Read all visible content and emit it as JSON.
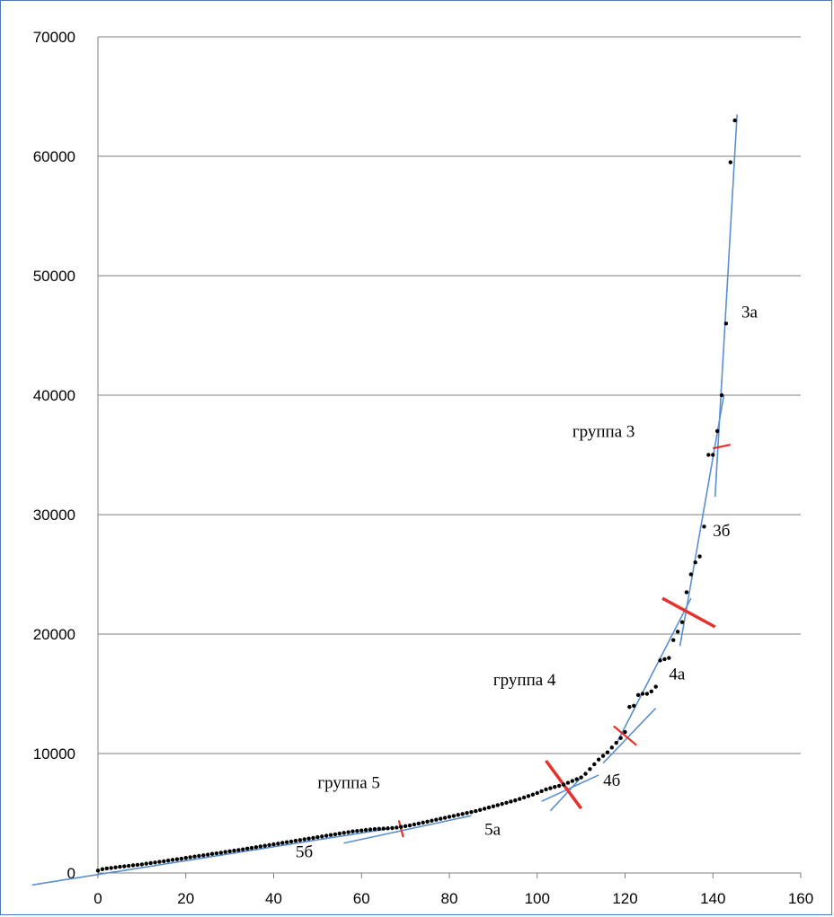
{
  "chart_data": {
    "type": "scatter",
    "title": "",
    "xlabel": "",
    "ylabel": "",
    "xlim": [
      0,
      160
    ],
    "ylim": [
      0,
      70000
    ],
    "x_ticks": [
      "0",
      "20",
      "40",
      "60",
      "80",
      "100",
      "120",
      "140",
      "160"
    ],
    "y_ticks": [
      "0",
      "10000",
      "20000",
      "30000",
      "40000",
      "50000",
      "60000",
      "70000"
    ],
    "grid": "horizontal",
    "points": [
      [
        0,
        200
      ],
      [
        1,
        320
      ],
      [
        2,
        380
      ],
      [
        3,
        420
      ],
      [
        4,
        470
      ],
      [
        5,
        520
      ],
      [
        6,
        560
      ],
      [
        7,
        600
      ],
      [
        8,
        640
      ],
      [
        9,
        680
      ],
      [
        10,
        720
      ],
      [
        11,
        780
      ],
      [
        12,
        830
      ],
      [
        13,
        880
      ],
      [
        14,
        930
      ],
      [
        15,
        980
      ],
      [
        16,
        1040
      ],
      [
        17,
        1100
      ],
      [
        18,
        1150
      ],
      [
        19,
        1200
      ],
      [
        20,
        1260
      ],
      [
        21,
        1320
      ],
      [
        22,
        1380
      ],
      [
        23,
        1430
      ],
      [
        24,
        1480
      ],
      [
        25,
        1540
      ],
      [
        26,
        1600
      ],
      [
        27,
        1650
      ],
      [
        28,
        1700
      ],
      [
        29,
        1760
      ],
      [
        30,
        1820
      ],
      [
        31,
        1870
      ],
      [
        32,
        1920
      ],
      [
        33,
        1980
      ],
      [
        34,
        2040
      ],
      [
        35,
        2100
      ],
      [
        36,
        2160
      ],
      [
        37,
        2220
      ],
      [
        38,
        2280
      ],
      [
        39,
        2340
      ],
      [
        40,
        2400
      ],
      [
        41,
        2460
      ],
      [
        42,
        2520
      ],
      [
        43,
        2580
      ],
      [
        44,
        2640
      ],
      [
        45,
        2700
      ],
      [
        46,
        2760
      ],
      [
        47,
        2820
      ],
      [
        48,
        2880
      ],
      [
        49,
        2940
      ],
      [
        50,
        3000
      ],
      [
        51,
        3060
      ],
      [
        52,
        3120
      ],
      [
        53,
        3180
      ],
      [
        54,
        3240
      ],
      [
        55,
        3300
      ],
      [
        56,
        3360
      ],
      [
        57,
        3420
      ],
      [
        58,
        3480
      ],
      [
        59,
        3520
      ],
      [
        60,
        3560
      ],
      [
        61,
        3600
      ],
      [
        62,
        3640
      ],
      [
        63,
        3680
      ],
      [
        64,
        3700
      ],
      [
        65,
        3720
      ],
      [
        66,
        3740
      ],
      [
        67,
        3760
      ],
      [
        68,
        3800
      ],
      [
        69,
        3860
      ],
      [
        70,
        3920
      ],
      [
        71,
        3980
      ],
      [
        72,
        4060
      ],
      [
        73,
        4140
      ],
      [
        74,
        4220
      ],
      [
        75,
        4300
      ],
      [
        76,
        4380
      ],
      [
        77,
        4460
      ],
      [
        78,
        4540
      ],
      [
        79,
        4620
      ],
      [
        80,
        4700
      ],
      [
        81,
        4780
      ],
      [
        82,
        4860
      ],
      [
        83,
        4940
      ],
      [
        84,
        5020
      ],
      [
        85,
        5100
      ],
      [
        86,
        5180
      ],
      [
        87,
        5280
      ],
      [
        88,
        5380
      ],
      [
        89,
        5480
      ],
      [
        90,
        5580
      ],
      [
        91,
        5680
      ],
      [
        92,
        5780
      ],
      [
        93,
        5880
      ],
      [
        94,
        5980
      ],
      [
        95,
        6080
      ],
      [
        96,
        6200
      ],
      [
        97,
        6320
      ],
      [
        98,
        6440
      ],
      [
        99,
        6560
      ],
      [
        100,
        6700
      ],
      [
        101,
        6850
      ],
      [
        102,
        7000
      ],
      [
        103,
        7100
      ],
      [
        104,
        7200
      ],
      [
        105,
        7300
      ],
      [
        106,
        7400
      ],
      [
        107,
        7550
      ],
      [
        108,
        7700
      ],
      [
        109,
        7850
      ],
      [
        110,
        8000
      ],
      [
        111,
        8300
      ],
      [
        112,
        8700
      ],
      [
        113,
        9100
      ],
      [
        114,
        9500
      ],
      [
        115,
        9800
      ],
      [
        116,
        10100
      ],
      [
        117,
        10500
      ],
      [
        118,
        10900
      ],
      [
        119,
        11300
      ],
      [
        120,
        11800
      ],
      [
        121,
        13900
      ],
      [
        122,
        14000
      ],
      [
        123,
        14900
      ],
      [
        124,
        15000
      ],
      [
        125,
        15000
      ],
      [
        126,
        15200
      ],
      [
        127,
        15600
      ],
      [
        128,
        17800
      ],
      [
        129,
        17900
      ],
      [
        130,
        18000
      ],
      [
        131,
        19500
      ],
      [
        132,
        20200
      ],
      [
        133,
        21000
      ],
      [
        134,
        23500
      ],
      [
        135,
        25000
      ],
      [
        136,
        26000
      ],
      [
        137,
        26500
      ],
      [
        138,
        29000
      ],
      [
        139,
        35000
      ],
      [
        140,
        35000
      ],
      [
        141,
        37000
      ],
      [
        142,
        40000
      ],
      [
        143,
        46000
      ],
      [
        144,
        59500
      ],
      [
        145,
        63000
      ]
    ],
    "fit_lines": [
      {
        "label": "3а",
        "from": [
          140.5,
          31500
        ],
        "to": [
          145.5,
          63500
        ]
      },
      {
        "label": "3б",
        "from": [
          132.5,
          19000
        ],
        "to": [
          142.5,
          40000
        ]
      },
      {
        "label": "4а",
        "from": [
          118,
          10800
        ],
        "to": [
          135,
          23000
        ]
      },
      {
        "label": "4б",
        "from": [
          101,
          6000
        ],
        "to": [
          114,
          8200
        ]
      },
      {
        "label": "5а",
        "from": [
          56,
          2500
        ],
        "to": [
          85,
          4800
        ]
      },
      {
        "label": "5б",
        "from": [
          -15,
          -1000
        ],
        "to": [
          66,
          3700
        ]
      },
      {
        "label": "",
        "from": [
          115,
          9200
        ],
        "to": [
          127,
          13800
        ]
      },
      {
        "label": "",
        "from": [
          103,
          5200
        ],
        "to": [
          110,
          8000
        ]
      }
    ],
    "group_boundaries": [
      {
        "center": [
          142,
          35700
        ],
        "halflen": [
          2,
          150
        ],
        "width": 2.2
      },
      {
        "center": [
          134.5,
          21800
        ],
        "halflen": [
          6,
          -1200
        ],
        "width": 3.5
      },
      {
        "center": [
          120,
          11500
        ],
        "halflen": [
          2.6,
          -800
        ],
        "width": 2.2
      },
      {
        "center": [
          106,
          7400
        ],
        "halflen": [
          4,
          -2000
        ],
        "width": 3.5
      },
      {
        "center": [
          69,
          3700
        ],
        "halflen": [
          0.5,
          -700
        ],
        "width": 2.2
      }
    ],
    "annotations": [
      {
        "text": "3а",
        "x": 146.5,
        "y": 46500
      },
      {
        "text": "группа  3",
        "x": 108,
        "y": 36500
      },
      {
        "text": "3б",
        "x": 140,
        "y": 28200
      },
      {
        "text": "группа  4",
        "x": 90,
        "y": 15700
      },
      {
        "text": "4а",
        "x": 130,
        "y": 16200
      },
      {
        "text": "4б",
        "x": 115,
        "y": 7300
      },
      {
        "text": "группа  5",
        "x": 50,
        "y": 7100
      },
      {
        "text": "5а",
        "x": 88,
        "y": 3200
      },
      {
        "text": "5б",
        "x": 45,
        "y": 1300
      }
    ],
    "colors": {
      "points": "#000000",
      "fit": "#5b8fd0",
      "boundary": "#e8302a",
      "grid": "#7f7f7f"
    }
  }
}
